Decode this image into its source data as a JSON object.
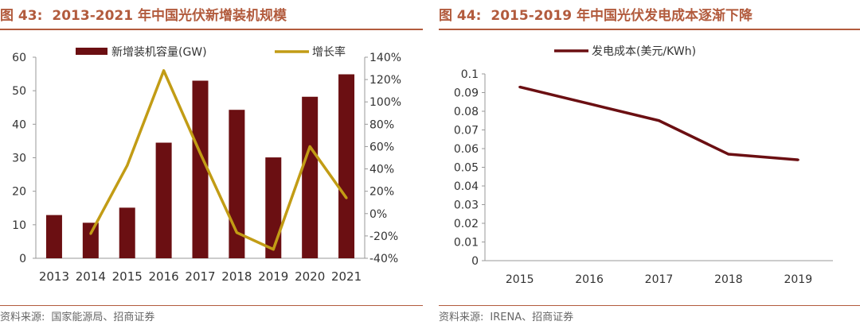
{
  "left": {
    "figure_label": "图 43:",
    "figure_title": "2013-2021 年中国光伏新增装机规模",
    "source_label": "资料来源:",
    "source_text": "国家能源局、招商证券"
  },
  "right": {
    "figure_label": "图 44:",
    "figure_title": "2015-2019 年中国光伏发电成本逐渐下降",
    "source_label": "资料来源:",
    "source_text": "IRENA、招商证券"
  },
  "chart_data": [
    {
      "type": "bar",
      "title": "2013-2021 年中国光伏新增装机规模",
      "categories": [
        "2013",
        "2014",
        "2015",
        "2016",
        "2017",
        "2018",
        "2019",
        "2020",
        "2021"
      ],
      "series": [
        {
          "name": "新增装机容量(GW)",
          "type": "bar",
          "axis": "left",
          "color": "#6b0f12",
          "values": [
            12.9,
            10.6,
            15.1,
            34.5,
            53.0,
            44.3,
            30.1,
            48.2,
            54.9
          ]
        },
        {
          "name": "增长率",
          "type": "line",
          "axis": "right",
          "color": "#c29c15",
          "values": [
            null,
            -18,
            43,
            128,
            54,
            -17,
            -32,
            60,
            14
          ]
        }
      ],
      "legend": [
        "新增装机容量(GW)",
        "增长率"
      ],
      "y_left": {
        "min": 0,
        "max": 60,
        "ticks": [
          "0",
          "10",
          "20",
          "30",
          "40",
          "50",
          "60"
        ]
      },
      "y_right": {
        "min": -40,
        "max": 140,
        "ticks": [
          "-40%",
          "-20%",
          "0%",
          "20%",
          "40%",
          "60%",
          "80%",
          "100%",
          "120%",
          "140%"
        ]
      },
      "grid": false
    },
    {
      "type": "line",
      "title": "2015-2019 年中国光伏发电成本逐渐下降",
      "categories": [
        "2015",
        "2016",
        "2017",
        "2018",
        "2019"
      ],
      "series": [
        {
          "name": "发电成本(美元/KWh)",
          "color": "#6b0f12",
          "values": [
            0.093,
            0.084,
            0.075,
            0.057,
            0.054
          ]
        }
      ],
      "legend": [
        "发电成本(美元/KWh)"
      ],
      "y": {
        "min": 0,
        "max": 0.1,
        "ticks": [
          "0",
          "0.01",
          "0.02",
          "0.03",
          "0.04",
          "0.05",
          "0.06",
          "0.07",
          "0.08",
          "0.09",
          "0.1"
        ]
      },
      "grid": false
    }
  ]
}
